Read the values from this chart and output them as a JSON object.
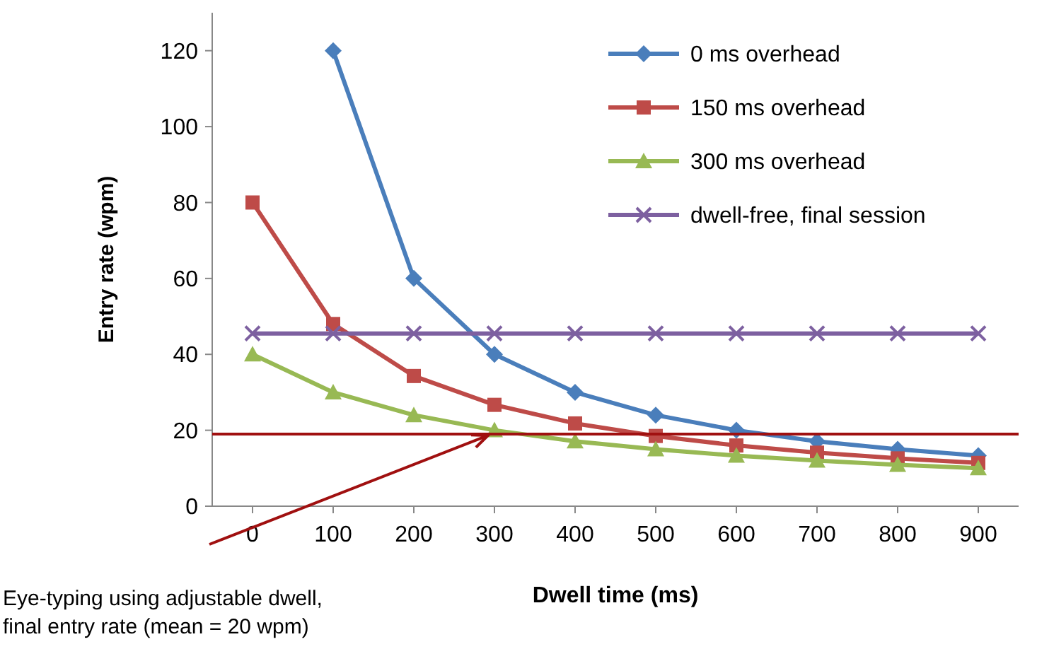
{
  "chart_data": {
    "type": "line",
    "xlabel": "Dwell time (ms)",
    "ylabel": "Entry rate (wpm)",
    "categories": [
      "0",
      "100",
      "200",
      "300",
      "400",
      "500",
      "600",
      "700",
      "800",
      "900"
    ],
    "series": [
      {
        "name": "0 ms overhead",
        "color": "#4a7ebb",
        "marker": "diamond",
        "values": [
          null,
          120,
          60,
          40,
          30,
          24,
          20,
          17.1,
          15,
          13.3
        ]
      },
      {
        "name": "150 ms overhead",
        "color": "#be4b48",
        "marker": "square",
        "values": [
          80,
          48,
          34.3,
          26.7,
          21.8,
          18.5,
          16,
          14.1,
          12.6,
          11.4
        ]
      },
      {
        "name": "300 ms overhead",
        "color": "#98b954",
        "marker": "triangle",
        "values": [
          40,
          30,
          24,
          20,
          17.1,
          15,
          13.3,
          12,
          10.9,
          10
        ]
      },
      {
        "name": "dwell-free, final session",
        "color": "#7d60a0",
        "marker": "cross",
        "values": [
          45.5,
          45.5,
          45.5,
          45.5,
          45.5,
          45.5,
          45.5,
          45.5,
          45.5,
          45.5
        ]
      }
    ],
    "ylim": [
      0,
      130
    ],
    "yticks": [
      0,
      20,
      40,
      60,
      80,
      100,
      120
    ],
    "grid": false,
    "legend": "top right",
    "ref_lines": [
      {
        "axis": "y",
        "value": 19,
        "color": "#a01010"
      }
    ],
    "annotations": [
      "Eye-typing using adjustable dwell,\nfinal entry rate (mean = 20 wpm)"
    ]
  }
}
